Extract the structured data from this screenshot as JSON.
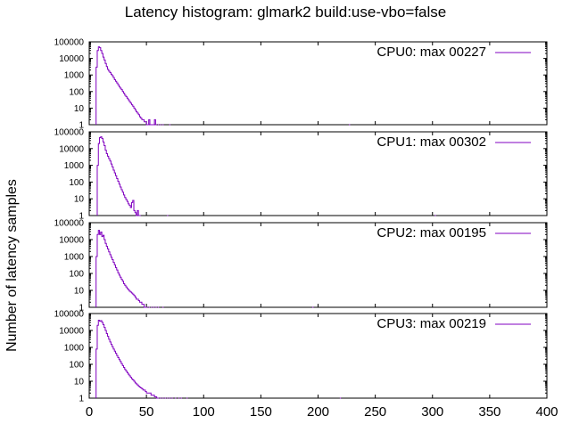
{
  "title": "Latency histogram:  glmark2 build:use-vbo=false",
  "ylabel": "Number of latency samples",
  "x_tick_labels": [
    "0",
    "50",
    "100",
    "150",
    "200",
    "250",
    "300",
    "350",
    "400"
  ],
  "y_tick_labels": [
    "1",
    "10",
    "100",
    "1000",
    "10000",
    "100000"
  ],
  "colors": {
    "series": "#8000c0",
    "axis": "#000000"
  },
  "chart_data": [
    {
      "type": "histogram",
      "legend": "CPU0: max 00227",
      "xlim": [
        0,
        400
      ],
      "ylim": [
        1,
        100000
      ],
      "yscale": "log",
      "legend_position": "top-right",
      "x": [
        6,
        7,
        8,
        9,
        10,
        11,
        12,
        13,
        14,
        15,
        16,
        17,
        18,
        19,
        20,
        21,
        22,
        23,
        24,
        25,
        26,
        27,
        28,
        29,
        30,
        31,
        32,
        33,
        34,
        35,
        36,
        37,
        38,
        39,
        40,
        41,
        42,
        43,
        44,
        45,
        46,
        47,
        48,
        49,
        50,
        51,
        52,
        53,
        54,
        55,
        56,
        57,
        58,
        60,
        62,
        64,
        70,
        227
      ],
      "y": [
        3000,
        30000,
        50000,
        45000,
        30000,
        20000,
        12000,
        8000,
        5000,
        3200,
        2200,
        1700,
        1400,
        1100,
        900,
        700,
        520,
        420,
        330,
        260,
        200,
        160,
        130,
        100,
        80,
        60,
        50,
        40,
        32,
        25,
        20,
        16,
        13,
        10,
        8,
        6,
        5,
        4,
        3,
        2.5,
        2,
        2,
        1.5,
        1.5,
        1,
        1,
        2,
        1,
        0,
        1,
        0,
        2,
        1,
        1,
        1,
        1,
        1,
        1
      ]
    },
    {
      "type": "histogram",
      "legend": "CPU1: max 00302",
      "xlim": [
        0,
        400
      ],
      "ylim": [
        1,
        100000
      ],
      "yscale": "log",
      "legend_position": "top-right",
      "x": [
        7,
        8,
        9,
        10,
        11,
        12,
        13,
        14,
        15,
        16,
        17,
        18,
        19,
        20,
        21,
        22,
        23,
        24,
        25,
        26,
        27,
        28,
        29,
        30,
        31,
        32,
        33,
        34,
        35,
        36,
        37,
        38,
        39,
        40,
        41,
        42,
        43,
        44,
        68,
        302
      ],
      "y": [
        1000,
        20000,
        45000,
        50000,
        40000,
        25000,
        15000,
        8000,
        5000,
        3500,
        2500,
        1800,
        1200,
        800,
        520,
        350,
        240,
        160,
        110,
        75,
        50,
        35,
        25,
        17,
        12,
        9,
        7,
        5,
        4,
        3,
        6,
        8,
        2,
        1.5,
        1,
        2,
        1,
        1,
        1,
        1
      ]
    },
    {
      "type": "histogram",
      "legend": "CPU2: max 00195",
      "xlim": [
        0,
        400
      ],
      "ylim": [
        1,
        100000
      ],
      "yscale": "log",
      "legend_position": "top-right",
      "x": [
        6,
        7,
        8,
        9,
        10,
        11,
        12,
        13,
        14,
        15,
        16,
        17,
        18,
        19,
        20,
        21,
        22,
        23,
        24,
        25,
        26,
        27,
        28,
        29,
        30,
        31,
        32,
        33,
        34,
        35,
        36,
        37,
        38,
        39,
        40,
        41,
        42,
        43,
        44,
        45,
        46,
        47,
        48,
        49,
        50,
        52,
        54,
        56,
        58,
        60,
        64,
        195
      ],
      "y": [
        1000,
        20000,
        35000,
        20000,
        28000,
        15000,
        18000,
        10000,
        6000,
        4000,
        2800,
        1900,
        1300,
        900,
        650,
        450,
        320,
        220,
        160,
        110,
        80,
        60,
        45,
        35,
        25,
        20,
        16,
        13,
        11,
        9,
        8,
        7,
        6,
        5,
        4,
        3,
        3,
        2.5,
        2,
        2,
        1.5,
        1.5,
        1,
        1,
        1,
        1,
        1,
        1,
        1,
        1,
        1,
        1
      ]
    },
    {
      "type": "histogram",
      "legend": "CPU3: max 00219",
      "xlim": [
        0,
        400
      ],
      "ylim": [
        1,
        100000
      ],
      "yscale": "log",
      "legend_position": "top-right",
      "x": [
        6,
        7,
        8,
        9,
        10,
        11,
        12,
        13,
        14,
        15,
        16,
        17,
        18,
        19,
        20,
        21,
        22,
        23,
        24,
        25,
        26,
        27,
        28,
        29,
        30,
        31,
        32,
        33,
        34,
        35,
        36,
        37,
        38,
        39,
        40,
        41,
        42,
        43,
        44,
        45,
        46,
        47,
        48,
        49,
        50,
        51,
        52,
        53,
        54,
        55,
        56,
        57,
        58,
        59,
        60,
        62,
        64,
        66,
        68,
        70,
        72,
        75,
        78,
        80,
        85,
        219
      ],
      "y": [
        800,
        20000,
        40000,
        35000,
        38000,
        30000,
        22000,
        15000,
        10000,
        6500,
        4500,
        3000,
        2100,
        1500,
        1100,
        800,
        600,
        450,
        330,
        250,
        190,
        145,
        110,
        85,
        65,
        50,
        40,
        32,
        26,
        21,
        17,
        14,
        12,
        10,
        8,
        7,
        6,
        5,
        4.5,
        4,
        3.5,
        3,
        3,
        2.5,
        2,
        2,
        2,
        2,
        1.5,
        1.5,
        1.5,
        1.2,
        1.2,
        1,
        1,
        1,
        1,
        1,
        1,
        1,
        1,
        1,
        1,
        1,
        1,
        1
      ]
    }
  ]
}
